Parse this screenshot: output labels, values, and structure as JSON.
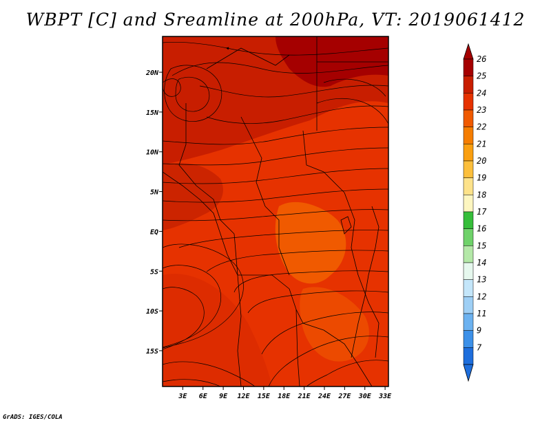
{
  "title": "WBPT [C] and Sreamline at 200hPa, VT: 2019061412",
  "credit": "GrADS: IGES/COLA",
  "map": {
    "lat_range": [
      -19.5,
      24.5
    ],
    "lon_range": [
      0,
      33.5
    ],
    "lat_ticks": [
      {
        "value": 20,
        "label": "20N"
      },
      {
        "value": 15,
        "label": "15N"
      },
      {
        "value": 10,
        "label": "10N"
      },
      {
        "value": 5,
        "label": "5N"
      },
      {
        "value": 0,
        "label": "EQ"
      },
      {
        "value": -5,
        "label": "5S"
      },
      {
        "value": -10,
        "label": "10S"
      },
      {
        "value": -15,
        "label": "15S"
      }
    ],
    "lon_ticks": [
      {
        "value": 3,
        "label": "3E"
      },
      {
        "value": 6,
        "label": "6E"
      },
      {
        "value": 9,
        "label": "9E"
      },
      {
        "value": 12,
        "label": "12E"
      },
      {
        "value": 15,
        "label": "15E"
      },
      {
        "value": 18,
        "label": "18E"
      },
      {
        "value": 21,
        "label": "21E"
      },
      {
        "value": 24,
        "label": "24E"
      },
      {
        "value": 27,
        "label": "27E"
      },
      {
        "value": 30,
        "label": "30E"
      },
      {
        "value": 33,
        "label": "33E"
      }
    ],
    "dominant_value_range": [
      23,
      26
    ]
  },
  "colorbar": {
    "labels": [
      "26",
      "25",
      "24",
      "23",
      "22",
      "21",
      "20",
      "19",
      "18",
      "17",
      "16",
      "15",
      "14",
      "13",
      "12",
      "11",
      "9",
      "7"
    ],
    "colors": [
      "#a50000",
      "#c81e00",
      "#e63200",
      "#f05a00",
      "#f57d00",
      "#fa9f10",
      "#fcbf3c",
      "#fde28a",
      "#fdf6c0",
      "#36be3a",
      "#6fd26a",
      "#b4e8a8",
      "#e6f8ee",
      "#c4e6fa",
      "#9ecff5",
      "#6cb2f0",
      "#3c90e8",
      "#1e6edc"
    ],
    "arrow_top_color": "#a50000",
    "arrow_bottom_color": "#1e6edc"
  }
}
